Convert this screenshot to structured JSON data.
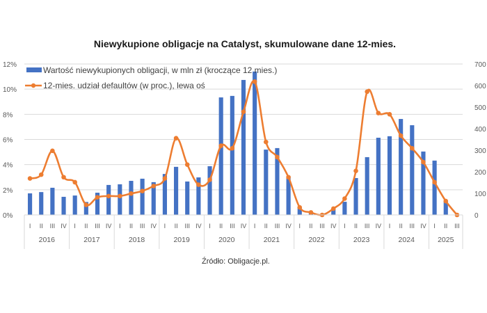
{
  "chart_data": {
    "type": "bar+line",
    "title": "Niewykupione obligacje na Catalyst, skumulowane dane 12-mies.",
    "source": "Źródło: Obligacje.pl.",
    "left_axis": {
      "ticks": [
        "0%",
        "2%",
        "4%",
        "6%",
        "8%",
        "10%",
        "12%"
      ],
      "range": [
        0,
        12
      ],
      "unit": "%"
    },
    "right_axis": {
      "ticks": [
        "0",
        "100",
        "200",
        "300",
        "400",
        "500",
        "600",
        "700"
      ],
      "range": [
        0,
        700
      ]
    },
    "grid": true,
    "legend_position": "top-left",
    "years": [
      "2016",
      "2017",
      "2018",
      "2019",
      "2020",
      "2021",
      "2022",
      "2023",
      "2024",
      "2025"
    ],
    "quarters_per_year": [
      4,
      4,
      4,
      4,
      4,
      4,
      4,
      4,
      4,
      3
    ],
    "categories": [
      "I",
      "II",
      "III",
      "IV",
      "I",
      "II",
      "III",
      "IV",
      "I",
      "II",
      "III",
      "IV",
      "I",
      "II",
      "III",
      "IV",
      "I",
      "II",
      "III",
      "IV",
      "I",
      "II",
      "III",
      "IV",
      "I",
      "II",
      "III",
      "IV",
      "I",
      "II",
      "III",
      "IV",
      "I",
      "II",
      "III",
      "IV",
      "I",
      "II",
      "III"
    ],
    "series": [
      {
        "name": "Wartość niewykupionych obligacji, w mln zł (kroczące 12 mies.)",
        "kind": "bar",
        "axis": "right",
        "color": "#4472C4",
        "values": [
          100,
          106,
          126,
          84,
          90,
          60,
          103,
          139,
          142,
          158,
          168,
          152,
          190,
          223,
          155,
          174,
          226,
          545,
          552,
          626,
          665,
          303,
          310,
          177,
          35,
          10,
          3,
          29,
          61,
          171,
          268,
          358,
          365,
          445,
          416,
          294,
          252,
          61,
          0
        ]
      },
      {
        "name": "12-mies. udział defaultów (w proc.), lewa oś",
        "kind": "line",
        "axis": "left",
        "color": "#ED7D31",
        "values": [
          2.9,
          3.2,
          5.1,
          3.0,
          2.6,
          0.8,
          1.4,
          1.5,
          1.5,
          1.7,
          1.9,
          2.3,
          2.9,
          6.1,
          4.0,
          2.4,
          2.8,
          5.5,
          5.3,
          8.2,
          10.6,
          5.8,
          4.6,
          3.0,
          0.6,
          0.2,
          0.0,
          0.5,
          1.3,
          3.5,
          9.8,
          8.1,
          8.0,
          6.3,
          5.3,
          4.2,
          2.6,
          1.1,
          0.0
        ]
      }
    ]
  }
}
